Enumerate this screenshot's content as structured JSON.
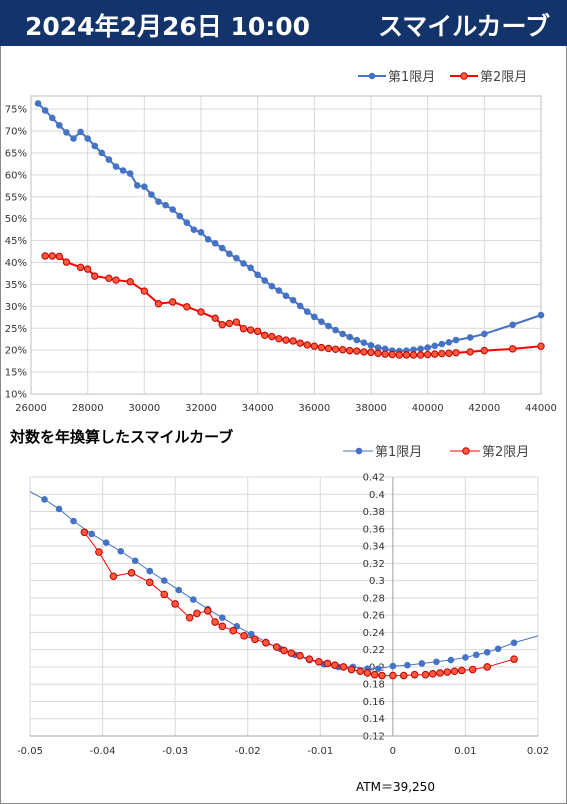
{
  "header": {
    "date": "2024年2月26日 10:00",
    "title": "スマイルカーブ"
  },
  "colors": {
    "header_bg": "#13336b",
    "series1": "#4472c4",
    "series2": "#ff0000",
    "series2_fill": "#ff5a3c",
    "grid": "#d9d9d9"
  },
  "chart_data": [
    {
      "type": "line",
      "title": "",
      "xlim": [
        26000,
        44000
      ],
      "ylim": [
        15,
        75
      ],
      "x_ticks": [
        "26000",
        "28000",
        "30000",
        "32000",
        "34000",
        "36000",
        "38000",
        "40000",
        "42000",
        "44000"
      ],
      "y_ticks": [
        "10%",
        "15%",
        "20%",
        "25%",
        "30%",
        "35%",
        "40%",
        "45%",
        "50%",
        "55%",
        "60%",
        "65%",
        "70%",
        "75%"
      ],
      "legend": "top-right",
      "series": [
        {
          "name": "第1限月",
          "points": [
            [
              26250,
              76.3
            ],
            [
              26500,
              74.7
            ],
            [
              26750,
              73.0
            ],
            [
              27000,
              71.3
            ],
            [
              27250,
              69.7
            ],
            [
              27500,
              68.3
            ],
            [
              27750,
              69.8
            ],
            [
              28000,
              68.3
            ],
            [
              28250,
              66.6
            ],
            [
              28500,
              65.0
            ],
            [
              28750,
              63.5
            ],
            [
              29000,
              61.9
            ],
            [
              29250,
              61.0
            ],
            [
              29500,
              60.3
            ],
            [
              29750,
              57.6
            ],
            [
              30000,
              57.3
            ],
            [
              30250,
              55.5
            ],
            [
              30500,
              53.9
            ],
            [
              30750,
              53.1
            ],
            [
              31000,
              52.1
            ],
            [
              31250,
              50.6
            ],
            [
              31500,
              49.1
            ],
            [
              31750,
              47.5
            ],
            [
              32000,
              46.9
            ],
            [
              32250,
              45.3
            ],
            [
              32500,
              44.4
            ],
            [
              32750,
              43.3
            ],
            [
              33000,
              42.0
            ],
            [
              33250,
              41.0
            ],
            [
              33500,
              39.8
            ],
            [
              33750,
              38.8
            ],
            [
              34000,
              37.2
            ],
            [
              34250,
              35.9
            ],
            [
              34500,
              34.6
            ],
            [
              34750,
              33.6
            ],
            [
              35000,
              32.4
            ],
            [
              35250,
              31.4
            ],
            [
              35500,
              30.1
            ],
            [
              35750,
              28.8
            ],
            [
              36000,
              27.6
            ],
            [
              36250,
              26.5
            ],
            [
              36500,
              25.5
            ],
            [
              36750,
              24.6
            ],
            [
              37000,
              23.7
            ],
            [
              37250,
              23.0
            ],
            [
              37500,
              22.3
            ],
            [
              37750,
              21.7
            ],
            [
              38000,
              21.1
            ],
            [
              38250,
              20.6
            ],
            [
              38500,
              20.3
            ],
            [
              38750,
              19.9
            ],
            [
              39000,
              19.8
            ],
            [
              39250,
              19.9
            ],
            [
              39500,
              20.1
            ],
            [
              39750,
              20.3
            ],
            [
              40000,
              20.6
            ],
            [
              40250,
              21.0
            ],
            [
              40500,
              21.4
            ],
            [
              40750,
              21.8
            ],
            [
              41000,
              22.3
            ],
            [
              41500,
              22.9
            ],
            [
              42000,
              23.7
            ],
            [
              43000,
              25.8
            ],
            [
              44000,
              28.0
            ]
          ]
        },
        {
          "name": "第2限月",
          "points": [
            [
              26500,
              41.5
            ],
            [
              26750,
              41.5
            ],
            [
              27000,
              41.4
            ],
            [
              27250,
              40.1
            ],
            [
              27750,
              38.9
            ],
            [
              28000,
              38.5
            ],
            [
              28250,
              36.9
            ],
            [
              28750,
              36.4
            ],
            [
              29000,
              36.0
            ],
            [
              29500,
              35.6
            ],
            [
              30000,
              33.5
            ],
            [
              30500,
              30.6
            ],
            [
              31000,
              31.0
            ],
            [
              31500,
              29.9
            ],
            [
              32000,
              28.7
            ],
            [
              32500,
              27.3
            ],
            [
              32750,
              25.8
            ],
            [
              33000,
              26.1
            ],
            [
              33250,
              26.4
            ],
            [
              33500,
              24.9
            ],
            [
              33750,
              24.6
            ],
            [
              34000,
              24.3
            ],
            [
              34250,
              23.4
            ],
            [
              34500,
              23.1
            ],
            [
              34750,
              22.6
            ],
            [
              35000,
              22.3
            ],
            [
              35250,
              22.1
            ],
            [
              35500,
              21.6
            ],
            [
              35750,
              21.2
            ],
            [
              36000,
              20.9
            ],
            [
              36250,
              20.6
            ],
            [
              36500,
              20.4
            ],
            [
              36750,
              20.2
            ],
            [
              37000,
              20.1
            ],
            [
              37250,
              19.9
            ],
            [
              37500,
              19.8
            ],
            [
              37750,
              19.6
            ],
            [
              38000,
              19.5
            ],
            [
              38250,
              19.3
            ],
            [
              38500,
              19.1
            ],
            [
              38750,
              19.0
            ],
            [
              39000,
              18.9
            ],
            [
              39250,
              18.9
            ],
            [
              39500,
              18.9
            ],
            [
              39750,
              18.9
            ],
            [
              40000,
              19.0
            ],
            [
              40250,
              19.1
            ],
            [
              40500,
              19.2
            ],
            [
              40750,
              19.3
            ],
            [
              41000,
              19.4
            ],
            [
              41500,
              19.6
            ],
            [
              42000,
              19.9
            ],
            [
              43000,
              20.3
            ],
            [
              44000,
              20.9
            ]
          ]
        }
      ]
    },
    {
      "type": "scatter",
      "title": "対数を年換算したスマイルカーブ",
      "xlim": [
        -0.05,
        0.02
      ],
      "ylim": [
        0.12,
        0.42
      ],
      "x_ticks": [
        "-0.05",
        "-0.04",
        "-0.03",
        "-0.02",
        "-0.01",
        "0",
        "0.01",
        "0.02"
      ],
      "y_ticks": [
        "0.12",
        "0.14",
        "0.16",
        "0.18",
        "0.2",
        "0.22",
        "0.24",
        "0.26",
        "0.28",
        "0.3",
        "0.32",
        "0.34",
        "0.36",
        "0.38",
        "0.4",
        "0.42"
      ],
      "legend": "top-right",
      "series": [
        {
          "name": "第1限月",
          "line_extends": [
            [
              -0.05,
              0.403
            ],
            [
              0.02,
              0.236
            ]
          ],
          "points": [
            [
              -0.048,
              0.394
            ],
            [
              -0.046,
              0.383
            ],
            [
              -0.044,
              0.369
            ],
            [
              -0.0415,
              0.354
            ],
            [
              -0.0395,
              0.344
            ],
            [
              -0.0375,
              0.334
            ],
            [
              -0.0355,
              0.323
            ],
            [
              -0.0335,
              0.311
            ],
            [
              -0.0315,
              0.3
            ],
            [
              -0.0295,
              0.289
            ],
            [
              -0.0275,
              0.278
            ],
            [
              -0.0255,
              0.267
            ],
            [
              -0.0235,
              0.257
            ],
            [
              -0.0215,
              0.247
            ],
            [
              -0.0195,
              0.238
            ],
            [
              -0.0175,
              0.229
            ],
            [
              -0.0155,
              0.221
            ],
            [
              -0.0135,
              0.214
            ],
            [
              -0.0115,
              0.208
            ],
            [
              -0.0095,
              0.203
            ],
            [
              -0.0075,
              0.2
            ],
            [
              -0.0055,
              0.2
            ],
            [
              -0.0035,
              0.198
            ],
            [
              -0.002,
              0.198
            ],
            [
              0.0,
              0.201
            ],
            [
              0.002,
              0.202
            ],
            [
              0.004,
              0.204
            ],
            [
              0.006,
              0.206
            ],
            [
              0.008,
              0.208
            ],
            [
              0.01,
              0.211
            ],
            [
              0.0115,
              0.214
            ],
            [
              0.013,
              0.217
            ],
            [
              0.0145,
              0.221
            ],
            [
              0.0167,
              0.228
            ]
          ]
        },
        {
          "name": "第2限月",
          "points": [
            [
              -0.0425,
              0.356
            ],
            [
              -0.0405,
              0.333
            ],
            [
              -0.0385,
              0.305
            ],
            [
              -0.036,
              0.309
            ],
            [
              -0.0335,
              0.298
            ],
            [
              -0.0315,
              0.284
            ],
            [
              -0.03,
              0.273
            ],
            [
              -0.028,
              0.257
            ],
            [
              -0.027,
              0.262
            ],
            [
              -0.0255,
              0.265
            ],
            [
              -0.0245,
              0.252
            ],
            [
              -0.0235,
              0.247
            ],
            [
              -0.022,
              0.242
            ],
            [
              -0.0205,
              0.236
            ],
            [
              -0.019,
              0.232
            ],
            [
              -0.0175,
              0.228
            ],
            [
              -0.016,
              0.223
            ],
            [
              -0.015,
              0.219
            ],
            [
              -0.014,
              0.216
            ],
            [
              -0.0128,
              0.213
            ],
            [
              -0.0115,
              0.209
            ],
            [
              -0.0102,
              0.206
            ],
            [
              -0.009,
              0.204
            ],
            [
              -0.008,
              0.202
            ],
            [
              -0.0068,
              0.2
            ],
            [
              -0.0057,
              0.197
            ],
            [
              -0.0045,
              0.195
            ],
            [
              -0.0035,
              0.193
            ],
            [
              -0.0025,
              0.191
            ],
            [
              -0.0015,
              0.19
            ],
            [
              0.0,
              0.19
            ],
            [
              0.0015,
              0.19
            ],
            [
              0.003,
              0.191
            ],
            [
              0.0045,
              0.191
            ],
            [
              0.0055,
              0.192
            ],
            [
              0.0065,
              0.193
            ],
            [
              0.0075,
              0.194
            ],
            [
              0.0085,
              0.195
            ],
            [
              0.0095,
              0.196
            ],
            [
              0.011,
              0.197
            ],
            [
              0.013,
              0.2
            ],
            [
              0.0167,
              0.209
            ]
          ]
        }
      ]
    }
  ],
  "footer": {
    "atm": "ATM＝39,250"
  }
}
